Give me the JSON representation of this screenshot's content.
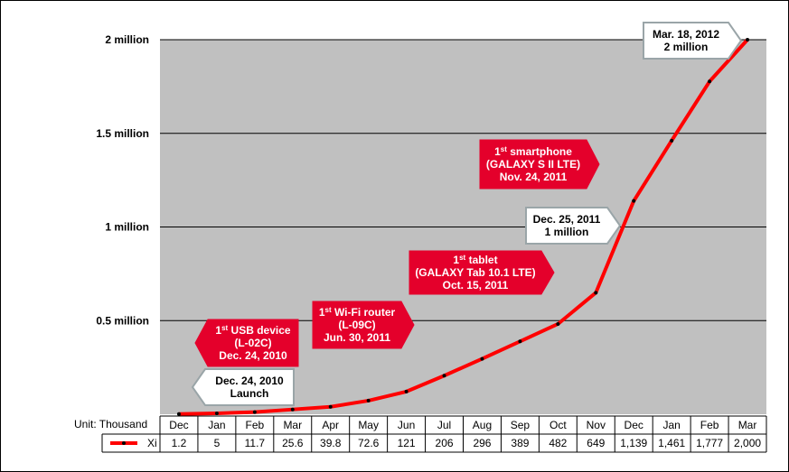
{
  "colors": {
    "plot_bg": "#c0c0c0",
    "series": "#ff0000",
    "callout_red": "#e4002b",
    "callout_white_border": "#9aa5a8",
    "grid": "#000000"
  },
  "chart_data": {
    "type": "line",
    "title": "",
    "xlabel": "",
    "ylabel": "",
    "unit_label": "Unit: Thousand",
    "ylim": [
      0,
      2000
    ],
    "y_ticks": [
      {
        "value": 500,
        "label": "0.5 million"
      },
      {
        "value": 1000,
        "label": "1 million"
      },
      {
        "value": 1500,
        "label": "1.5 million"
      },
      {
        "value": 2000,
        "label": "2 million"
      }
    ],
    "categories": [
      "Dec",
      "Jan",
      "Feb",
      "Mar",
      "Apr",
      "May",
      "Jun",
      "Jul",
      "Aug",
      "Sep",
      "Oct",
      "Nov",
      "Dec",
      "Jan",
      "Feb",
      "Mar"
    ],
    "series": [
      {
        "name": "Xi",
        "values": [
          1.2,
          5,
          11.7,
          25.6,
          39.8,
          72.6,
          121,
          206,
          296,
          389,
          482,
          649,
          1139,
          1461,
          1777,
          2000
        ],
        "labels": [
          "1.2",
          "5",
          "11.7",
          "25.6",
          "39.8",
          "72.6",
          "121",
          "206",
          "296",
          "389",
          "482",
          "649",
          "1,139",
          "1,461",
          "1,777",
          "2,000"
        ]
      }
    ],
    "grid": true,
    "annotations": [
      {
        "style": "white",
        "lines": [
          {
            "text": "Dec. 24, 2010"
          },
          {
            "text": "Launch"
          }
        ]
      },
      {
        "style": "red",
        "lines": [
          {
            "sup": "1",
            "supsfx": "st",
            "text": " USB device"
          },
          {
            "text": "(L-02C)"
          },
          {
            "text": "Dec. 24, 2010"
          }
        ]
      },
      {
        "style": "red",
        "lines": [
          {
            "sup": "1",
            "supsfx": "st",
            "text": "  Wi-Fi router"
          },
          {
            "text": "(L-09C)"
          },
          {
            "text": "Jun. 30, 2011"
          }
        ]
      },
      {
        "style": "red",
        "lines": [
          {
            "sup": "1",
            "supsfx": "st",
            "text": " tablet"
          },
          {
            "text": "(GALAXY  Tab 10.1 LTE)"
          },
          {
            "text": "Oct. 15, 2011"
          }
        ]
      },
      {
        "style": "red",
        "lines": [
          {
            "sup": "1",
            "supsfx": "st",
            "text": " smartphone"
          },
          {
            "text": "(GALAXY  S II LTE)"
          },
          {
            "text": "Nov. 24, 2011"
          }
        ]
      },
      {
        "style": "white",
        "lines": [
          {
            "text": "Dec. 25, 2011"
          },
          {
            "text": "1 million"
          }
        ]
      },
      {
        "style": "white",
        "lines": [
          {
            "text": "Mar. 18, 2012"
          },
          {
            "text": "2 million"
          }
        ]
      }
    ]
  }
}
